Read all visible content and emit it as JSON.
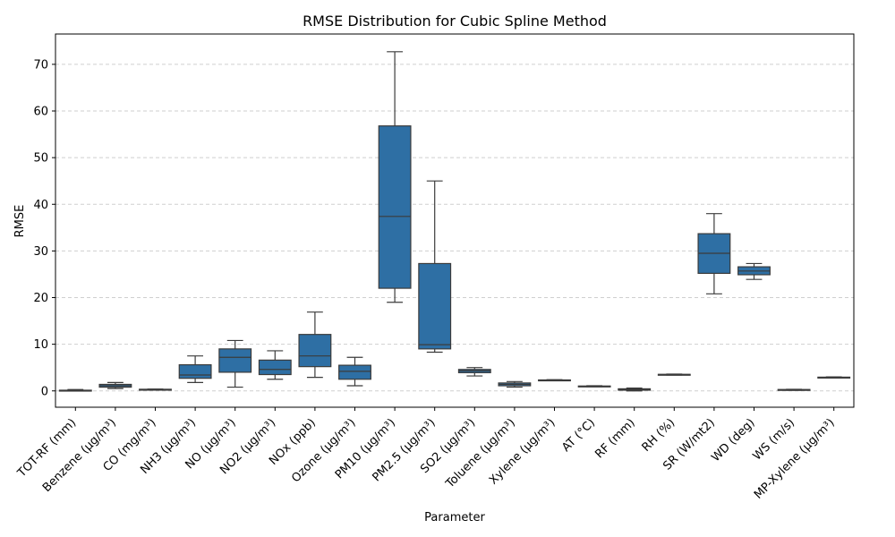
{
  "chart_data": {
    "type": "box",
    "title": "RMSE Distribution for Cubic Spline Method",
    "xlabel": "Parameter",
    "ylabel": "RMSE",
    "ylim": [
      -3.5,
      76.5
    ],
    "yticks": [
      0,
      10,
      20,
      30,
      40,
      50,
      60,
      70
    ],
    "grid": "y-dashed",
    "box_color": "#2e6fa4",
    "categories": [
      "TOT-RF (mm)",
      "Benzene (µg/m³)",
      "CO (mg/m³)",
      "NH3 (µg/m³)",
      "NO (µg/m³)",
      "NO2 (µg/m³)",
      "NOx (ppb)",
      "Ozone (µg/m³)",
      "PM10 (µg/m³)",
      "PM2.5 (µg/m³)",
      "SO2 (µg/m³)",
      "Toluene (µg/m³)",
      "Xylene (µg/m³)",
      "AT (°C)",
      "RF (mm)",
      "RH (%)",
      "SR (W/mt2)",
      "WD (deg)",
      "WS (m/s)",
      "MP-Xylene (µg/m³)"
    ],
    "boxes": [
      {
        "min": 0.0,
        "q1": 0.05,
        "median": 0.1,
        "q3": 0.15,
        "max": 0.3
      },
      {
        "min": 0.5,
        "q1": 0.8,
        "median": 1.1,
        "q3": 1.4,
        "max": 1.8
      },
      {
        "min": 0.2,
        "q1": 0.25,
        "median": 0.3,
        "q3": 0.35,
        "max": 0.4
      },
      {
        "min": 1.8,
        "q1": 2.7,
        "median": 3.4,
        "q3": 5.6,
        "max": 7.5
      },
      {
        "min": 0.8,
        "q1": 4.0,
        "median": 7.2,
        "q3": 9.0,
        "max": 10.8
      },
      {
        "min": 2.5,
        "q1": 3.5,
        "median": 4.6,
        "q3": 6.6,
        "max": 8.6
      },
      {
        "min": 2.9,
        "q1": 5.2,
        "median": 7.5,
        "q3": 12.1,
        "max": 16.9
      },
      {
        "min": 1.1,
        "q1": 2.5,
        "median": 4.2,
        "q3": 5.5,
        "max": 7.2
      },
      {
        "min": 19.0,
        "q1": 22.0,
        "median": 37.4,
        "q3": 56.8,
        "max": 72.7
      },
      {
        "min": 8.3,
        "q1": 9.0,
        "median": 9.9,
        "q3": 27.3,
        "max": 45.0
      },
      {
        "min": 3.2,
        "q1": 3.9,
        "median": 4.3,
        "q3": 4.6,
        "max": 5.0
      },
      {
        "min": 0.8,
        "q1": 1.1,
        "median": 1.4,
        "q3": 1.7,
        "max": 2.0
      },
      {
        "min": 2.2,
        "q1": 2.25,
        "median": 2.3,
        "q3": 2.35,
        "max": 2.4
      },
      {
        "min": 0.9,
        "q1": 0.95,
        "median": 1.0,
        "q3": 1.05,
        "max": 1.1
      },
      {
        "min": 0.0,
        "q1": 0.15,
        "median": 0.3,
        "q3": 0.45,
        "max": 0.6
      },
      {
        "min": 3.4,
        "q1": 3.45,
        "median": 3.5,
        "q3": 3.55,
        "max": 3.6
      },
      {
        "min": 20.8,
        "q1": 25.2,
        "median": 29.5,
        "q3": 33.7,
        "max": 38.0
      },
      {
        "min": 23.9,
        "q1": 24.9,
        "median": 25.7,
        "q3": 26.6,
        "max": 27.3
      },
      {
        "min": 0.15,
        "q1": 0.2,
        "median": 0.25,
        "q3": 0.3,
        "max": 0.35
      },
      {
        "min": 2.8,
        "q1": 2.85,
        "median": 2.9,
        "q3": 2.95,
        "max": 3.0
      }
    ]
  }
}
